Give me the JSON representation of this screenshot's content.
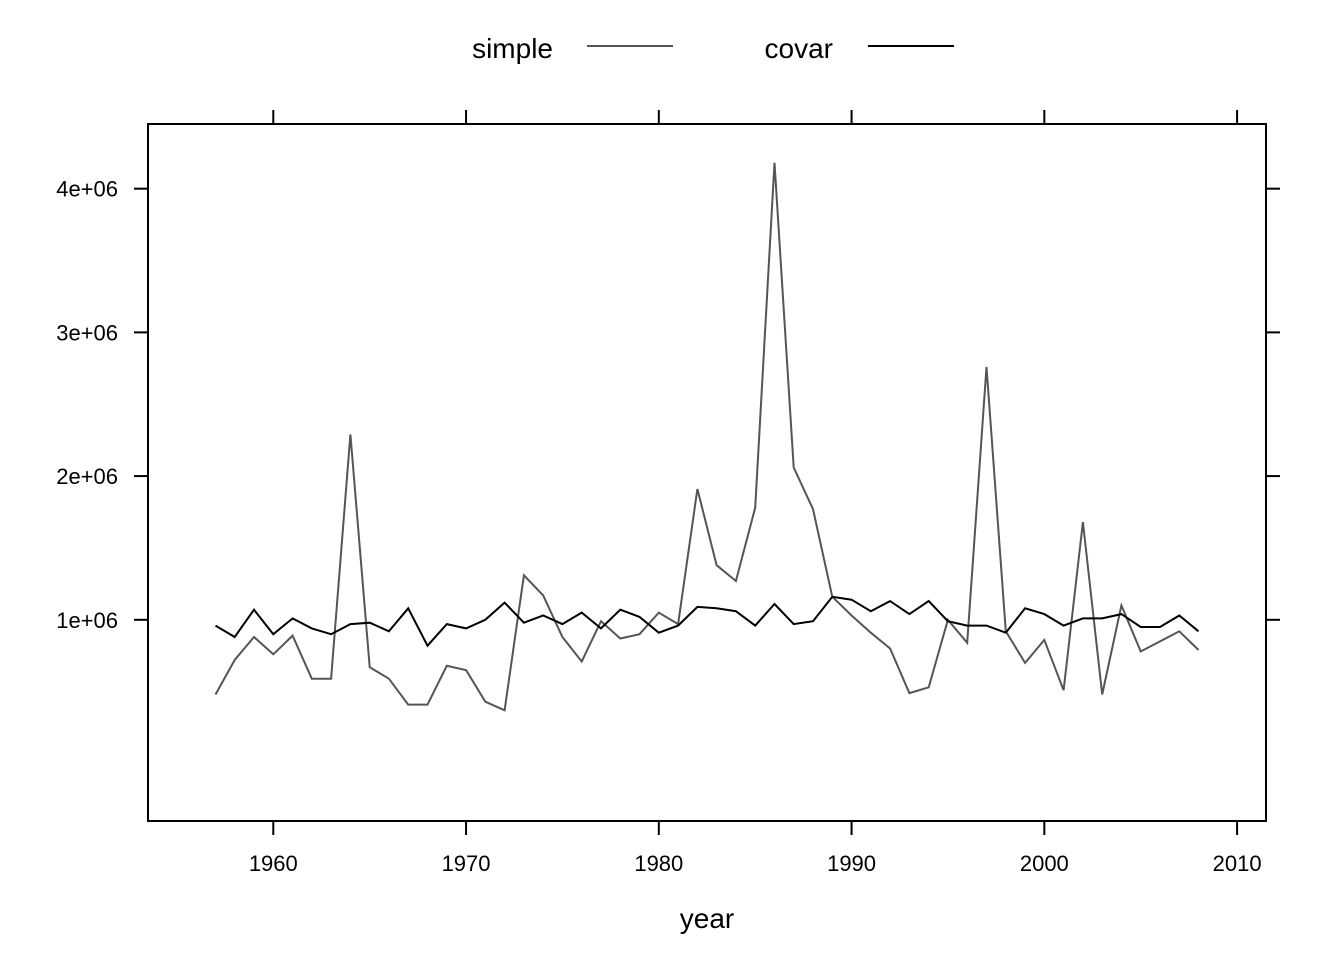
{
  "chart_data": {
    "type": "line",
    "title": "",
    "xlabel": "year",
    "ylabel": "",
    "xlim": [
      1953.5,
      2011.5
    ],
    "ylim": [
      -400000,
      4450000
    ],
    "x_ticks": [
      1960,
      1970,
      1980,
      1990,
      2000,
      2010
    ],
    "x_tick_labels": [
      "1960",
      "1970",
      "1980",
      "1990",
      "2000",
      "2010"
    ],
    "y_ticks": [
      1000000,
      2000000,
      3000000,
      4000000
    ],
    "y_tick_labels": [
      "1e+06",
      "2e+06",
      "3e+06",
      "4e+06"
    ],
    "grid": false,
    "legend_position": "top",
    "x": [
      1957,
      1958,
      1959,
      1960,
      1961,
      1962,
      1963,
      1964,
      1965,
      1966,
      1967,
      1968,
      1969,
      1970,
      1971,
      1972,
      1973,
      1974,
      1975,
      1976,
      1977,
      1978,
      1979,
      1980,
      1981,
      1982,
      1983,
      1984,
      1985,
      1986,
      1987,
      1988,
      1989,
      1990,
      1991,
      1992,
      1993,
      1994,
      1995,
      1996,
      1997,
      1998,
      1999,
      2000,
      2001,
      2002,
      2003,
      2004,
      2005,
      2006,
      2007,
      2008
    ],
    "series": [
      {
        "name": "simple",
        "color": "#555555",
        "values": [
          480000,
          720000,
          880000,
          760000,
          890000,
          590000,
          590000,
          2290000,
          670000,
          590000,
          410000,
          410000,
          680000,
          650000,
          430000,
          370000,
          1310000,
          1170000,
          880000,
          710000,
          990000,
          870000,
          900000,
          1050000,
          970000,
          1910000,
          1380000,
          1270000,
          1780000,
          4180000,
          2060000,
          1770000,
          1160000,
          1030000,
          910000,
          800000,
          490000,
          530000,
          1000000,
          840000,
          2760000,
          920000,
          700000,
          860000,
          510000,
          1680000,
          480000,
          1100000,
          780000,
          850000,
          920000,
          790000
        ]
      },
      {
        "name": "covar",
        "color": "#000000",
        "values": [
          960000,
          880000,
          1070000,
          900000,
          1010000,
          940000,
          900000,
          970000,
          980000,
          920000,
          1080000,
          820000,
          970000,
          940000,
          1000000,
          1120000,
          980000,
          1030000,
          970000,
          1050000,
          940000,
          1070000,
          1020000,
          910000,
          960000,
          1090000,
          1080000,
          1060000,
          960000,
          1110000,
          970000,
          990000,
          1160000,
          1140000,
          1060000,
          1130000,
          1040000,
          1130000,
          990000,
          960000,
          960000,
          910000,
          1080000,
          1040000,
          960000,
          1010000,
          1010000,
          1040000,
          950000,
          950000,
          1030000,
          920000
        ]
      }
    ]
  }
}
